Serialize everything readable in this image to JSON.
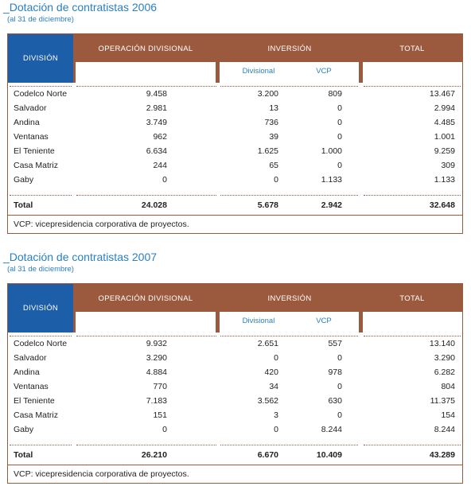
{
  "sections": [
    {
      "title": "_Dotación de contratistas 2006",
      "subtitle": "(al 31 de diciembre)",
      "table": {
        "headers": {
          "division": "DIVISIÓN",
          "operacion": "OPERACIÓN DIVISIONAL",
          "inversion": "INVERSIÓN",
          "divisional": "Divisional",
          "vcp": "VCP",
          "total": "TOTAL"
        },
        "rows": [
          [
            "Codelco Norte",
            "9.458",
            "3.200",
            "809",
            "13.467"
          ],
          [
            "Salvador",
            "2.981",
            "13",
            "0",
            "2.994"
          ],
          [
            "Andina",
            "3.749",
            "736",
            "0",
            "4.485"
          ],
          [
            "Ventanas",
            "962",
            "39",
            "0",
            "1.001"
          ],
          [
            "El Teniente",
            "6.634",
            "1.625",
            "1.000",
            "9.259"
          ],
          [
            "Casa Matriz",
            "244",
            "65",
            "0",
            "309"
          ],
          [
            "Gaby",
            "0",
            "0",
            "1.133",
            "1.133"
          ]
        ],
        "total_row": [
          "Total",
          "24.028",
          "5.678",
          "2.942",
          "32.648"
        ],
        "footnote": "VCP: vicepresidencia corporativa de proyectos."
      }
    },
    {
      "title": "_Dotación de contratistas 2007",
      "subtitle": "(al 31 de diciembre)",
      "table": {
        "headers": {
          "division": "DIVISIÓN",
          "operacion": "OPERACIÓN DIVISIONAL",
          "inversion": "INVERSIÓN",
          "divisional": "Divisional",
          "vcp": "VCP",
          "total": "TOTAL"
        },
        "rows": [
          [
            "Codelco Norte",
            "9.932",
            "2.651",
            "557",
            "13.140"
          ],
          [
            "Salvador",
            "3.290",
            "0",
            "0",
            "3.290"
          ],
          [
            "Andina",
            "4.884",
            "420",
            "978",
            "6.282"
          ],
          [
            "Ventanas",
            "770",
            "34",
            "0",
            "804"
          ],
          [
            "El Teniente",
            "7.183",
            "3.562",
            "630",
            "11.375"
          ],
          [
            "Casa Matriz",
            "151",
            "3",
            "0",
            "154"
          ],
          [
            "Gaby",
            "0",
            "0",
            "8.244",
            "8.244"
          ]
        ],
        "total_row": [
          "Total",
          "26.210",
          "6.670",
          "10.409",
          "43.289"
        ],
        "footnote": "VCP: vicepresidencia corporativa de proyectos."
      }
    }
  ]
}
